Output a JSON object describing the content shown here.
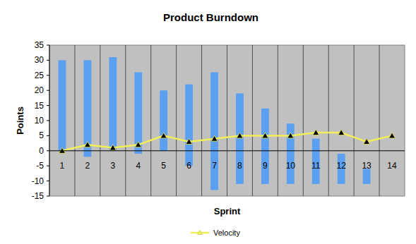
{
  "chart_data": {
    "type": "bar",
    "title": "Product Burndown",
    "x_label": "Sprint",
    "y_label": "Points",
    "categories": [
      "1",
      "2",
      "3",
      "4",
      "5",
      "6",
      "7",
      "8",
      "9",
      "10",
      "11",
      "12",
      "13",
      "14"
    ],
    "series": [
      {
        "type": "bar",
        "color": "#5a9ff0",
        "values": [
          30,
          30,
          31,
          26,
          20,
          22,
          26,
          19,
          14,
          9,
          4,
          -1,
          -6,
          null
        ],
        "low": [
          0,
          -2,
          0,
          -1,
          0,
          -5,
          -13,
          -11,
          -11,
          -11,
          -11,
          -11,
          -11,
          null
        ]
      },
      {
        "name": "Velocity",
        "type": "line",
        "color": "#f2ee5a",
        "marker": "triangle",
        "values": [
          0,
          2,
          1,
          2,
          5,
          3,
          4,
          5,
          5,
          5,
          6,
          6,
          3,
          5
        ]
      }
    ],
    "ylim": [
      -15,
      35
    ],
    "yticks": [
      -15,
      -10,
      -5,
      0,
      5,
      10,
      15,
      20,
      25,
      30,
      35
    ],
    "grid": true,
    "legend": "bottom"
  }
}
